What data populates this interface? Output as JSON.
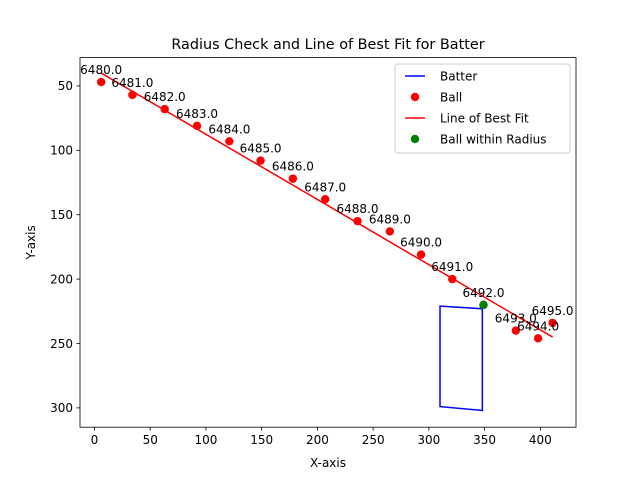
{
  "chart_data": {
    "type": "scatter",
    "title": "Radius Check and Line of Best Fit for Batter",
    "xlabel": "X-axis",
    "ylabel": "Y-axis",
    "xlim": [
      -13,
      432
    ],
    "ylim": [
      315,
      28
    ],
    "y_inverted": true,
    "xticks": [
      0,
      50,
      100,
      150,
      200,
      250,
      300,
      350,
      400
    ],
    "yticks": [
      50,
      100,
      150,
      200,
      250,
      300
    ],
    "legend_position": "top-right",
    "series": [
      {
        "name": "Batter",
        "kind": "polygon",
        "color": "#0000ff",
        "points": [
          [
            310,
            221
          ],
          [
            348,
            223
          ],
          [
            348,
            302
          ],
          [
            310,
            299
          ]
        ]
      },
      {
        "name": "Ball",
        "kind": "scatter",
        "color": "#ff0000",
        "points": [
          {
            "x": 6,
            "y": 47,
            "label": "6480.0"
          },
          {
            "x": 34,
            "y": 57,
            "label": "6481.0"
          },
          {
            "x": 63,
            "y": 68,
            "label": "6482.0"
          },
          {
            "x": 92,
            "y": 81,
            "label": "6483.0"
          },
          {
            "x": 121,
            "y": 93,
            "label": "6484.0"
          },
          {
            "x": 149,
            "y": 108,
            "label": "6485.0"
          },
          {
            "x": 178,
            "y": 122,
            "label": "6486.0"
          },
          {
            "x": 207,
            "y": 138,
            "label": "6487.0"
          },
          {
            "x": 236,
            "y": 155,
            "label": "6488.0"
          },
          {
            "x": 265,
            "y": 163,
            "label": "6489.0"
          },
          {
            "x": 293,
            "y": 181,
            "label": "6490.0"
          },
          {
            "x": 321,
            "y": 200,
            "label": "6491.0"
          },
          {
            "x": 349,
            "y": 220,
            "label": "6492.0"
          },
          {
            "x": 378,
            "y": 240,
            "label": "6493.0"
          },
          {
            "x": 398,
            "y": 246,
            "label": "6494.0"
          },
          {
            "x": 411,
            "y": 234,
            "label": "6495.0"
          }
        ]
      },
      {
        "name": "Line of Best Fit",
        "kind": "line",
        "color": "#ff0000",
        "points": [
          [
            6,
            40
          ],
          [
            411,
            245
          ]
        ]
      },
      {
        "name": "Ball within Radius",
        "kind": "scatter",
        "color": "#008000",
        "points": [
          {
            "x": 349,
            "y": 220
          }
        ]
      }
    ]
  }
}
